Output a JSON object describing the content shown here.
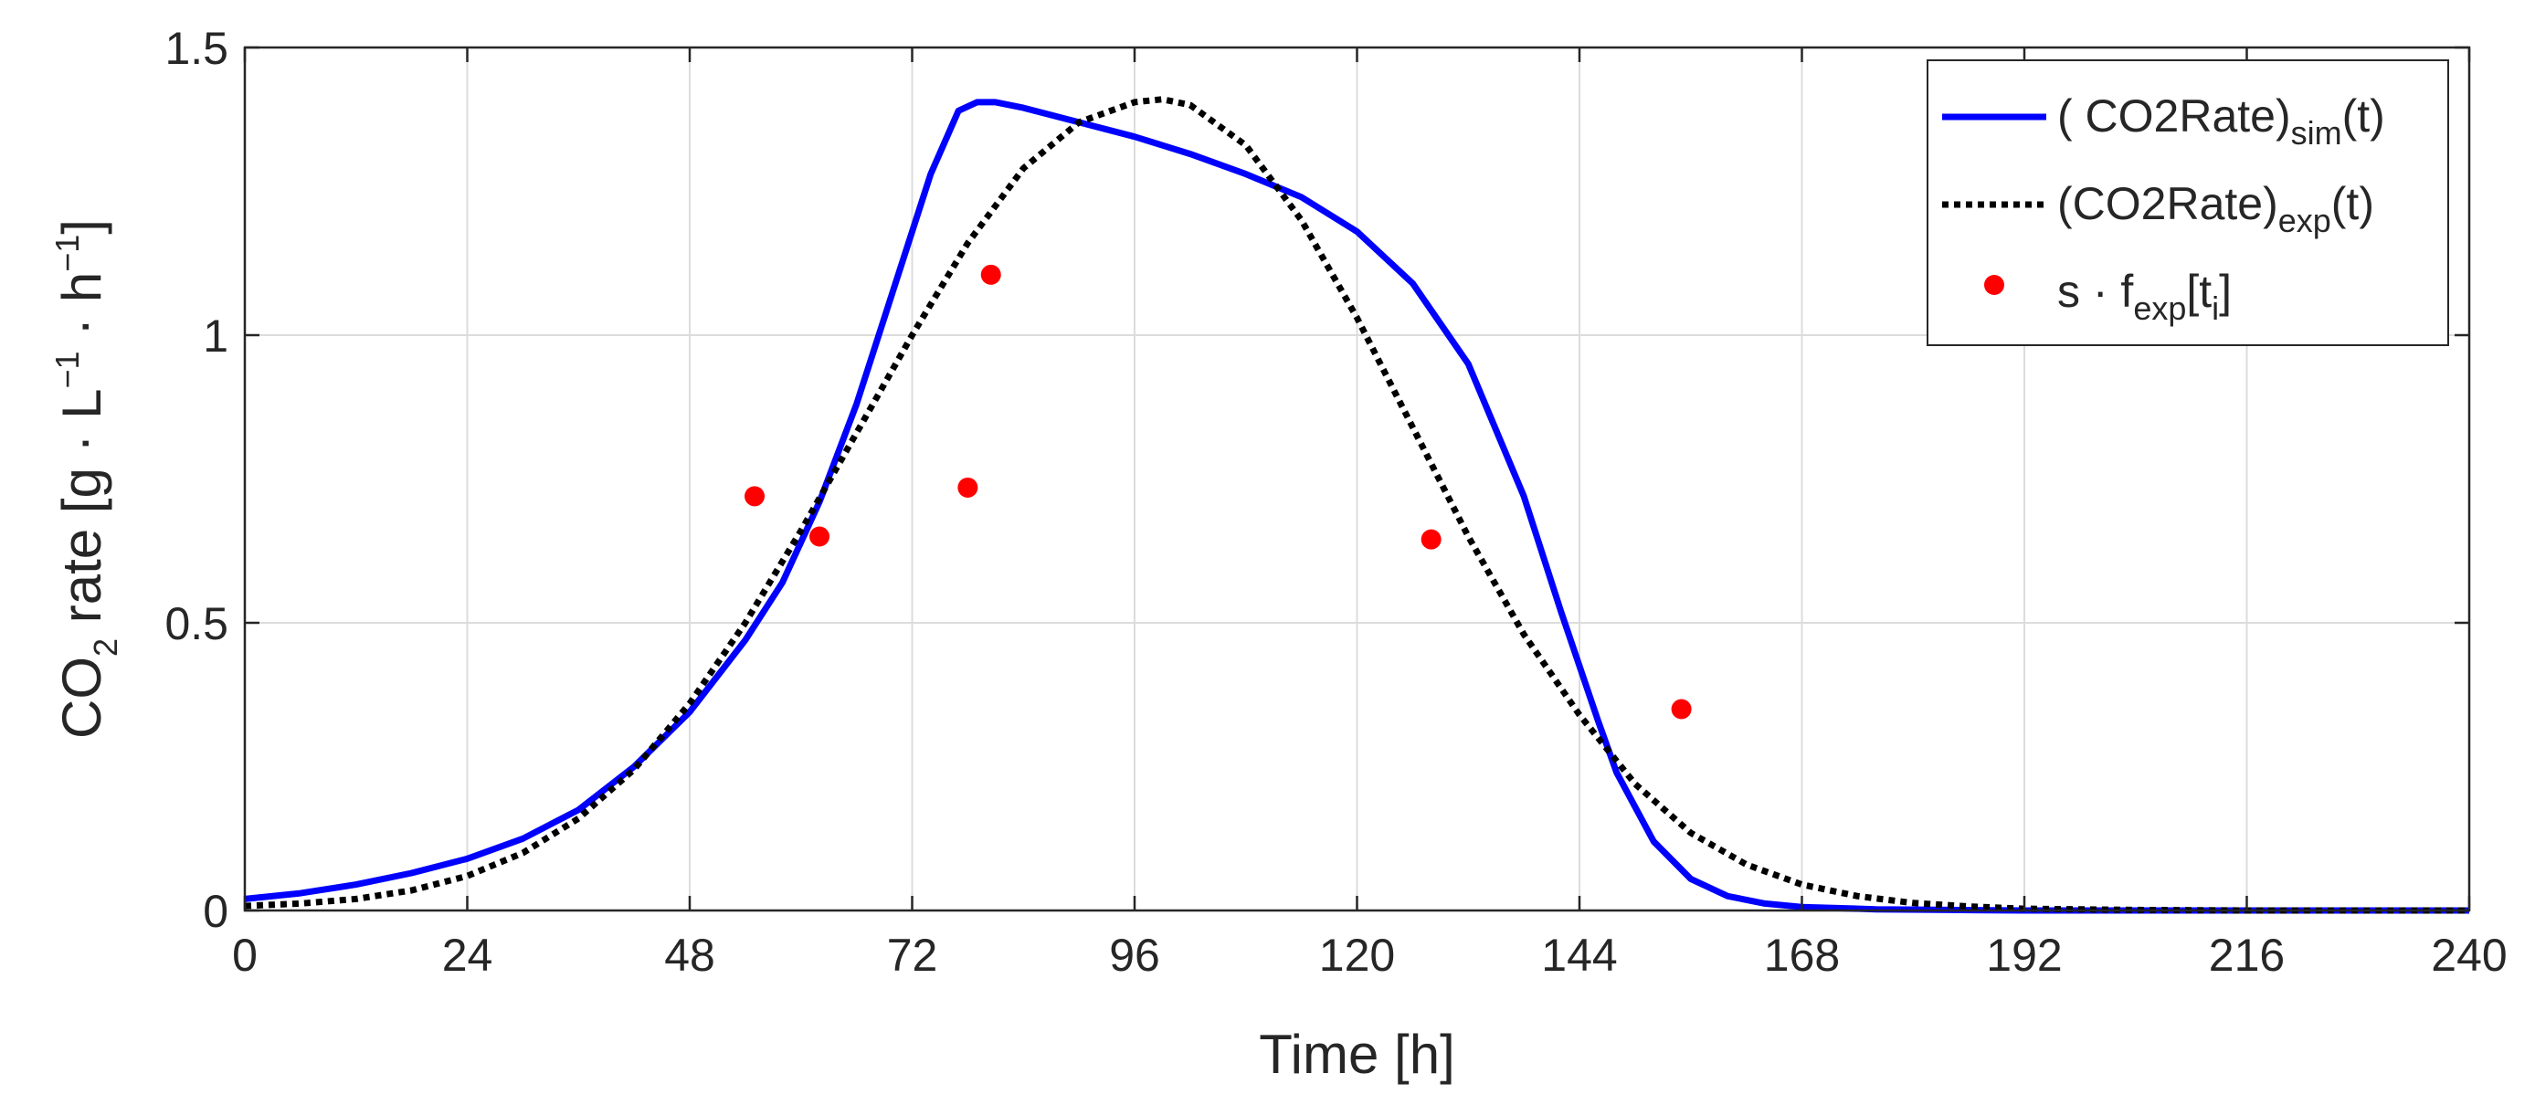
{
  "chart_data": {
    "type": "line",
    "title": "",
    "xlabel": "Time [h]",
    "ylabel": {
      "pre": "CO",
      "sub": "2",
      "mid": " rate [g · L",
      "sup1": "−1",
      "mid2": " · h",
      "sup2": "−1",
      "post": "]"
    },
    "xlim": [
      0,
      240
    ],
    "ylim": [
      0,
      1.5
    ],
    "x_ticks": [
      0,
      24,
      48,
      72,
      96,
      120,
      144,
      168,
      192,
      216,
      240
    ],
    "y_ticks": [
      0,
      0.5,
      1,
      1.5
    ],
    "x_tick_labels": [
      "0",
      "24",
      "48",
      "72",
      "96",
      "120",
      "144",
      "168",
      "192",
      "216",
      "240"
    ],
    "y_tick_labels": [
      "0",
      "0.5",
      "1",
      "1.5"
    ],
    "grid": true,
    "legend_position": "top-right",
    "series": [
      {
        "name": "sim",
        "style": "solid",
        "color": "#0000ff",
        "legend": {
          "pre": "( CO2Rate)",
          "sub": "sim",
          "post": "(t)"
        },
        "x": [
          0,
          6,
          12,
          18,
          24,
          30,
          36,
          42,
          48,
          54,
          58,
          62,
          66,
          70,
          74,
          77,
          79,
          81,
          84,
          90,
          96,
          102,
          108,
          114,
          120,
          126,
          132,
          138,
          142,
          146,
          148,
          152,
          156,
          160,
          164,
          168,
          176,
          184,
          192,
          200,
          220,
          240
        ],
        "y": [
          0.02,
          0.03,
          0.045,
          0.065,
          0.09,
          0.125,
          0.175,
          0.25,
          0.345,
          0.47,
          0.57,
          0.71,
          0.88,
          1.08,
          1.28,
          1.39,
          1.405,
          1.405,
          1.395,
          1.37,
          1.345,
          1.315,
          1.28,
          1.24,
          1.18,
          1.09,
          0.95,
          0.72,
          0.52,
          0.33,
          0.24,
          0.12,
          0.055,
          0.025,
          0.012,
          0.006,
          0.002,
          0.001,
          0.0,
          0.0,
          0.0,
          0.0
        ]
      },
      {
        "name": "exp",
        "style": "dotted",
        "color": "#000000",
        "legend": {
          "pre": "(CO2Rate)",
          "sub": "exp",
          "post": "(t)"
        },
        "x": [
          0,
          6,
          12,
          18,
          24,
          30,
          36,
          42,
          48,
          54,
          60,
          66,
          72,
          78,
          84,
          90,
          96,
          99,
          102,
          108,
          114,
          120,
          126,
          132,
          138,
          144,
          150,
          156,
          162,
          168,
          174,
          180,
          186,
          192,
          204,
          216,
          240
        ],
        "y": [
          0.008,
          0.012,
          0.02,
          0.035,
          0.06,
          0.1,
          0.16,
          0.245,
          0.36,
          0.5,
          0.66,
          0.83,
          1.0,
          1.16,
          1.29,
          1.37,
          1.405,
          1.41,
          1.4,
          1.33,
          1.2,
          1.03,
          0.84,
          0.65,
          0.48,
          0.34,
          0.22,
          0.135,
          0.08,
          0.045,
          0.025,
          0.013,
          0.007,
          0.003,
          0.001,
          0.0,
          0.0
        ]
      },
      {
        "name": "points",
        "style": "marker",
        "color": "#ff0000",
        "legend": {
          "pre": "s · f",
          "sub": "exp",
          "post": "[t",
          "sub2": "i",
          "post2": "]"
        },
        "x": [
          55,
          62,
          78,
          80.5,
          128,
          155
        ],
        "y": [
          0.72,
          0.65,
          0.735,
          1.105,
          0.645,
          0.35
        ]
      }
    ]
  }
}
